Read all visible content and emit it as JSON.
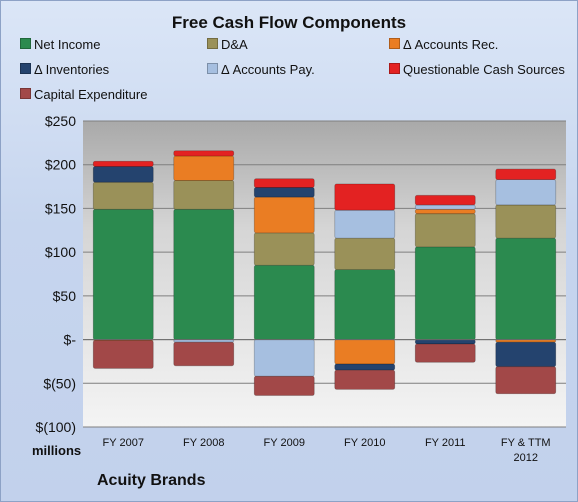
{
  "chart_data": {
    "type": "bar",
    "stacked": true,
    "title": "Free Cash Flow Components",
    "unit_label": "millions",
    "company": "Acuity Brands",
    "categories": [
      "FY 2007",
      "FY 2008",
      "FY 2009",
      "FY 2010",
      "FY 2011",
      "FY & TTM 2012"
    ],
    "ylim": [
      -100,
      250
    ],
    "yticks": [
      -100,
      -50,
      0,
      50,
      100,
      150,
      200,
      250
    ],
    "ytick_labels": [
      "$(100)",
      "$(50)",
      "$-",
      "$50",
      "$100",
      "$150",
      "$200",
      "$250"
    ],
    "grid": true,
    "legend_position": "top",
    "series": [
      {
        "name": "Net Income",
        "color": "#2b8a4f",
        "values": [
          149,
          149,
          85,
          80,
          106,
          116
        ]
      },
      {
        "name": "D&A",
        "color": "#9a9159",
        "values": [
          31,
          33,
          37,
          36,
          38,
          38
        ]
      },
      {
        "name": "Δ Accounts Rec.",
        "color": "#ea7d23",
        "values": [
          -1,
          28,
          41,
          -28,
          5,
          -3
        ]
      },
      {
        "name": "Δ Inventories",
        "color": "#24436e",
        "values": [
          18,
          0,
          11,
          -7,
          -5,
          -28
        ]
      },
      {
        "name": "Δ Accounts Pay.",
        "color": "#a6bfe0",
        "values": [
          0,
          -3,
          -42,
          32,
          5,
          29
        ]
      },
      {
        "name": "Questionable Cash Sources",
        "color": "#e32222",
        "values": [
          6,
          6,
          10,
          30,
          11,
          12
        ]
      },
      {
        "name": "Capital Expenditure",
        "color": "#a24848",
        "values": [
          -32,
          -27,
          -22,
          -22,
          -21,
          -31
        ]
      }
    ]
  }
}
